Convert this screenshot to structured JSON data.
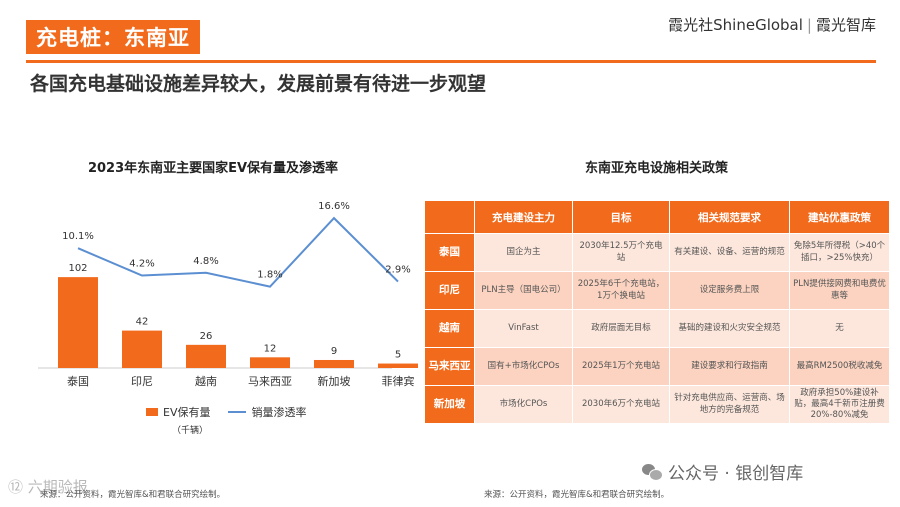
{
  "header": {
    "title": "充电桩：东南亚",
    "brand_left": "霞光社ShineGlobal",
    "brand_sep": "|",
    "brand_right": "霞光智库",
    "subtitle": "各国充电基础设施差异较大，发展前景有待进一步观望"
  },
  "left_panel": {
    "legend_unit": "（千辆）",
    "source": "来源：公开资料，霞光智库&和君联合研究绘制。"
  },
  "chart_data": {
    "type": "bar",
    "title": "2023年东南亚主要国家EV保有量及渗透率",
    "categories": [
      "泰国",
      "印尼",
      "越南",
      "马来西亚",
      "新加坡",
      "菲律宾"
    ],
    "series": [
      {
        "name": "EV保有量",
        "type": "bar",
        "values": [
          102,
          42,
          26,
          12,
          9,
          5
        ],
        "labels": [
          "102",
          "42",
          "26",
          "12",
          "9",
          "5"
        ],
        "color": "#f26b1d"
      },
      {
        "name": "销量渗透率",
        "type": "line",
        "values": [
          10.1,
          4.2,
          4.8,
          1.8,
          16.6,
          2.9
        ],
        "labels": [
          "10.1%",
          "4.2%",
          "4.8%",
          "1.8%",
          "16.6%",
          "2.9%"
        ],
        "color": "#5b8fd1"
      }
    ],
    "ylim": [
      0,
      110
    ],
    "y2lim": [
      0,
      19
    ],
    "grid": false,
    "legend_position": "bottom"
  },
  "policy_table": {
    "title": "东南亚充电设施相关政策",
    "headers": [
      "",
      "充电建设主力",
      "目标",
      "相关规范要求",
      "建站优惠政策"
    ],
    "rows": [
      {
        "country": "泰国",
        "cells": [
          "国企为主",
          "2030年12.5万个充电站",
          "有关建设、设备、运营的规范",
          "免除5年所得税（>40个插口，>25%快充）"
        ]
      },
      {
        "country": "印尼",
        "cells": [
          "PLN主导（国电公司）",
          "2025年6千个充电站，1万个换电站",
          "设定服务费上限",
          "PLN提供接网费和电费优惠等"
        ]
      },
      {
        "country": "越南",
        "cells": [
          "VinFast",
          "政府层面无目标",
          "基础的建设和火灾安全规范",
          "无"
        ]
      },
      {
        "country": "马来西亚",
        "cells": [
          "国有+市场化CPOs",
          "2025年1万个充电站",
          "建设要求和行政指南",
          "最高RM2500税收减免"
        ]
      },
      {
        "country": "新加坡",
        "cells": [
          "市场化CPOs",
          "2030年6万个充电站",
          "针对充电供应商、运营商、场地方的完备规范",
          "政府承担50%建设补贴，最高4千新币注册费20%-80%减免"
        ]
      }
    ],
    "source": "来源：公开资料，霞光智库&和君联合研究绘制。"
  },
  "footer": {
    "wechat": "公众号 · 银创智库",
    "watermark": "⑫ 六期验报"
  },
  "colors": {
    "accent": "#f26b1d",
    "line": "#5b8fd1",
    "cell_light": "#fde7dc",
    "cell_dark": "#fbd3c0"
  }
}
